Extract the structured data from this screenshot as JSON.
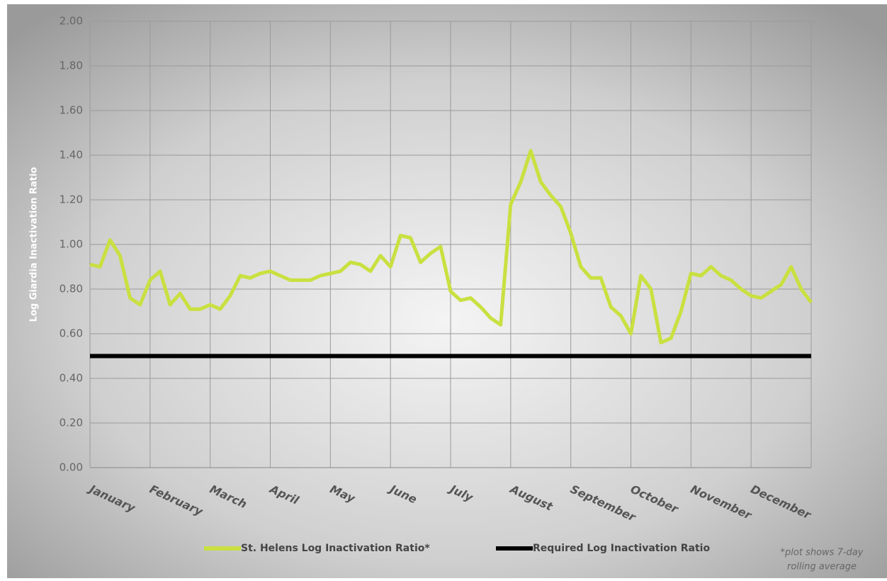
{
  "chart_data": {
    "type": "line",
    "y_label": "Log Giardia Inactivation Ratio",
    "categories": [
      "January",
      null,
      null,
      null,
      null,
      null,
      "February",
      null,
      null,
      null,
      null,
      null,
      "March",
      null,
      null,
      null,
      null,
      null,
      "April",
      null,
      null,
      null,
      null,
      null,
      "May",
      null,
      null,
      null,
      null,
      null,
      "June",
      null,
      null,
      null,
      null,
      null,
      "July",
      null,
      null,
      null,
      null,
      null,
      "August",
      null,
      null,
      null,
      null,
      null,
      "September",
      null,
      null,
      null,
      null,
      null,
      "October",
      null,
      null,
      null,
      null,
      null,
      "November",
      null,
      null,
      null,
      null,
      null,
      "December",
      null,
      null,
      null,
      null,
      null,
      null
    ],
    "series": [
      {
        "name": "St. Helens Log Inactivation Ratio*",
        "color": "#c9e040",
        "values": [
          0.91,
          0.9,
          1.02,
          0.95,
          0.76,
          0.73,
          0.84,
          0.88,
          0.73,
          0.78,
          0.71,
          0.71,
          0.73,
          0.71,
          0.77,
          0.86,
          0.85,
          0.87,
          0.88,
          0.86,
          0.84,
          0.84,
          0.84,
          0.86,
          0.87,
          0.88,
          0.92,
          0.91,
          0.88,
          0.95,
          0.9,
          1.04,
          1.03,
          0.92,
          0.96,
          0.99,
          0.79,
          0.75,
          0.76,
          0.72,
          0.67,
          0.64,
          1.18,
          1.28,
          1.42,
          1.28,
          1.22,
          1.17,
          1.05,
          0.9,
          0.85,
          0.85,
          0.72,
          0.68,
          0.6,
          0.86,
          0.8,
          0.56,
          0.58,
          0.7,
          0.87,
          0.86,
          0.9,
          0.86,
          0.84,
          0.8,
          0.77,
          0.76,
          0.79,
          0.82,
          0.9,
          0.8,
          0.74
        ]
      },
      {
        "name": "Required Log Inactivation Ratio",
        "color": "#000000",
        "values": [
          0.5,
          0.5,
          0.5,
          0.5,
          0.5,
          0.5,
          0.5,
          0.5,
          0.5,
          0.5,
          0.5,
          0.5,
          0.5,
          0.5,
          0.5,
          0.5,
          0.5,
          0.5,
          0.5,
          0.5,
          0.5,
          0.5,
          0.5,
          0.5,
          0.5,
          0.5,
          0.5,
          0.5,
          0.5,
          0.5,
          0.5,
          0.5,
          0.5,
          0.5,
          0.5,
          0.5,
          0.5,
          0.5,
          0.5,
          0.5,
          0.5,
          0.5,
          0.5,
          0.5,
          0.5,
          0.5,
          0.5,
          0.5,
          0.5,
          0.5,
          0.5,
          0.5,
          0.5,
          0.5,
          0.5,
          0.5,
          0.5,
          0.5,
          0.5,
          0.5,
          0.5,
          0.5,
          0.5,
          0.5,
          0.5,
          0.5,
          0.5,
          0.5,
          0.5,
          0.5,
          0.5,
          0.5,
          0.5
        ]
      }
    ],
    "ylim": [
      0,
      2
    ],
    "yticks": [
      {
        "value": 0,
        "label": "0.00"
      },
      {
        "value": 0.2,
        "label": "0.20"
      },
      {
        "value": 0.4,
        "label": "0.40"
      },
      {
        "value": 0.6,
        "label": "0.60"
      },
      {
        "value": 0.8,
        "label": "0.80"
      },
      {
        "value": 1,
        "label": "1.00"
      },
      {
        "value": 1.2,
        "label": "1.20"
      },
      {
        "value": 1.4,
        "label": "1.40"
      },
      {
        "value": 1.6,
        "label": "1.60"
      },
      {
        "value": 1.8,
        "label": "1.80"
      },
      {
        "value": 2,
        "label": "2.00"
      }
    ],
    "grid": true,
    "legend": "bottom",
    "note": [
      "*plot shows 7-day",
      "rolling average"
    ]
  }
}
